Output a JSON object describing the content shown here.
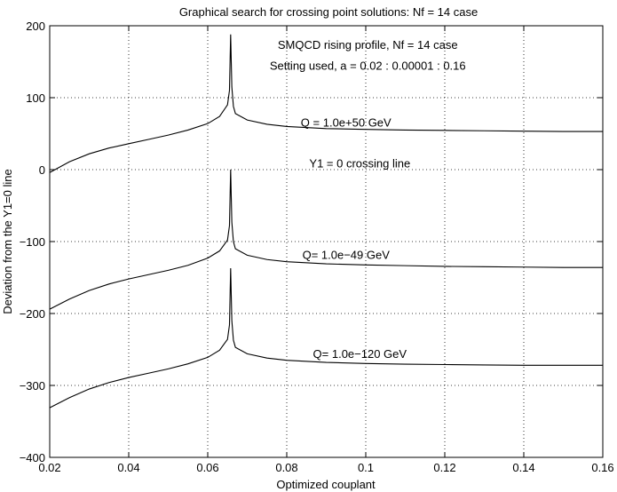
{
  "chart_data": {
    "type": "line",
    "title": "Graphical search for crossing point solutions: Nf = 14 case",
    "xlabel": "Optimized couplant",
    "ylabel": "Deviation from the Y1=0 line",
    "xlim": [
      0.02,
      0.16
    ],
    "ylim": [
      -400,
      200
    ],
    "xticks": [
      0.02,
      0.04,
      0.06,
      0.08,
      0.1,
      0.12,
      0.14,
      0.16
    ],
    "xtick_labels": [
      "0.02",
      "0.04",
      "0.06",
      "0.08",
      "0.1",
      "0.12",
      "0.14",
      "0.16"
    ],
    "yticks": [
      -400,
      -300,
      -200,
      -100,
      0,
      100,
      200
    ],
    "ytick_labels": [
      "−400",
      "−300",
      "−200",
      "−100",
      "0",
      "100",
      "200"
    ],
    "grid": true,
    "annotations": [
      {
        "text": "SMQCD rising profile, Nf = 14 case",
        "x": 0.1005,
        "y": 168
      },
      {
        "text": "Setting used, a = 0.02 : 0.00001 : 0.16",
        "x": 0.1005,
        "y": 139
      },
      {
        "text": "Q = 1.0e+50 GeV",
        "x": 0.095,
        "y": 60
      },
      {
        "text": "Y1 = 0 crossing line",
        "x": 0.0985,
        "y": 3
      },
      {
        "text": "Q= 1.0e−49 GeV",
        "x": 0.095,
        "y": -124
      },
      {
        "text": "Q= 1.0e−120 GeV",
        "x": 0.0985,
        "y": -262
      }
    ],
    "series": [
      {
        "peak_x": 0.0658,
        "peak_y": 188,
        "x": [
          0.02,
          0.025,
          0.03,
          0.035,
          0.04,
          0.045,
          0.05,
          0.055,
          0.06,
          0.063,
          0.065,
          0.0655,
          0.0658,
          0.0661,
          0.0665,
          0.067,
          0.07,
          0.075,
          0.08,
          0.09,
          0.1,
          0.11,
          0.12,
          0.13,
          0.14,
          0.15,
          0.16
        ],
        "y": [
          -4,
          11,
          22,
          30,
          36,
          42,
          48,
          55,
          64,
          74,
          90,
          110,
          188,
          115,
          88,
          78,
          69,
          63,
          60,
          57,
          56,
          55,
          54.5,
          54,
          53.5,
          53,
          53
        ]
      },
      {
        "peak_x": 0.0658,
        "peak_y": 0,
        "x": [
          0.02,
          0.025,
          0.03,
          0.035,
          0.04,
          0.045,
          0.05,
          0.055,
          0.06,
          0.063,
          0.065,
          0.0655,
          0.0658,
          0.0661,
          0.0665,
          0.067,
          0.07,
          0.075,
          0.08,
          0.09,
          0.1,
          0.11,
          0.12,
          0.13,
          0.14,
          0.15,
          0.16
        ],
        "y": [
          -194,
          -180,
          -168,
          -159,
          -152,
          -146,
          -140,
          -133,
          -123,
          -113,
          -98,
          -78,
          0,
          -73,
          -100,
          -110,
          -119,
          -125,
          -128,
          -131,
          -132.5,
          -133.5,
          -134.5,
          -135,
          -135.5,
          -136,
          -136
        ]
      },
      {
        "peak_x": 0.0658,
        "peak_y": -137,
        "x": [
          0.02,
          0.025,
          0.03,
          0.035,
          0.04,
          0.045,
          0.05,
          0.055,
          0.06,
          0.063,
          0.065,
          0.0655,
          0.0658,
          0.0661,
          0.0665,
          0.067,
          0.07,
          0.075,
          0.08,
          0.09,
          0.1,
          0.11,
          0.12,
          0.13,
          0.14,
          0.15,
          0.16
        ],
        "y": [
          -331,
          -317,
          -305,
          -296,
          -289,
          -283,
          -277,
          -270,
          -261,
          -251,
          -236,
          -216,
          -137,
          -210,
          -237,
          -247,
          -256,
          -262,
          -265,
          -268,
          -269.5,
          -270.5,
          -271,
          -271.5,
          -272,
          -272,
          -272
        ]
      }
    ]
  }
}
